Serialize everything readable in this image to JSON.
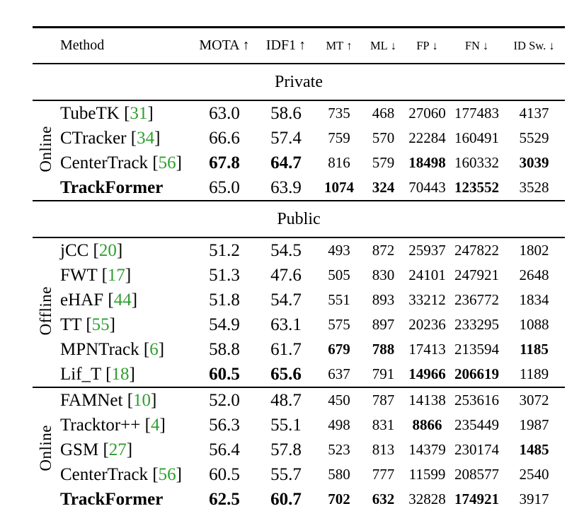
{
  "colors": {
    "citation": "#2e9e2e",
    "text": "#000000",
    "rule": "#000000"
  },
  "header": {
    "method_label": "Method",
    "metrics": [
      {
        "key": "mota",
        "label": "MOTA",
        "arrow": "↑",
        "size": "big"
      },
      {
        "key": "idf1",
        "label": "IDF1",
        "arrow": "↑",
        "size": "big"
      },
      {
        "key": "mt",
        "label": "MT",
        "arrow": "↑",
        "size": "small"
      },
      {
        "key": "ml",
        "label": "ML",
        "arrow": "↓",
        "size": "small"
      },
      {
        "key": "fp",
        "label": "FP",
        "arrow": "↓",
        "size": "small"
      },
      {
        "key": "fn",
        "label": "FN",
        "arrow": "↓",
        "size": "small"
      },
      {
        "key": "id-sw",
        "label": "ID Sw.",
        "arrow": "↓",
        "size": "small"
      }
    ]
  },
  "sections": [
    {
      "title": "Private",
      "groups": [
        {
          "label": "Online",
          "rows": [
            {
              "method": "TubeTK",
              "cite": "31",
              "bold_method": false,
              "values": [
                "63.0",
                "58.6",
                "735",
                "468",
                "27060",
                "177483",
                "4137"
              ],
              "bold": [
                0,
                0,
                0,
                0,
                0,
                0,
                0
              ]
            },
            {
              "method": "CTracker",
              "cite": "34",
              "bold_method": false,
              "values": [
                "66.6",
                "57.4",
                "759",
                "570",
                "22284",
                "160491",
                "5529"
              ],
              "bold": [
                0,
                0,
                0,
                0,
                0,
                0,
                0
              ]
            },
            {
              "method": "CenterTrack",
              "cite": "56",
              "bold_method": false,
              "values": [
                "67.8",
                "64.7",
                "816",
                "579",
                "18498",
                "160332",
                "3039"
              ],
              "bold": [
                1,
                1,
                0,
                0,
                1,
                0,
                1
              ]
            },
            {
              "method": "TrackFormer",
              "cite": null,
              "bold_method": true,
              "values": [
                "65.0",
                "63.9",
                "1074",
                "324",
                "70443",
                "123552",
                "3528"
              ],
              "bold": [
                0,
                0,
                1,
                1,
                0,
                1,
                0
              ]
            }
          ]
        }
      ]
    },
    {
      "title": "Public",
      "groups": [
        {
          "label": "Offline",
          "rows": [
            {
              "method": "jCC",
              "cite": "20",
              "bold_method": false,
              "values": [
                "51.2",
                "54.5",
                "493",
                "872",
                "25937",
                "247822",
                "1802"
              ],
              "bold": [
                0,
                0,
                0,
                0,
                0,
                0,
                0
              ]
            },
            {
              "method": "FWT",
              "cite": "17",
              "bold_method": false,
              "values": [
                "51.3",
                "47.6",
                "505",
                "830",
                "24101",
                "247921",
                "2648"
              ],
              "bold": [
                0,
                0,
                0,
                0,
                0,
                0,
                0
              ]
            },
            {
              "method": "eHAF",
              "cite": "44",
              "bold_method": false,
              "values": [
                "51.8",
                "54.7",
                "551",
                "893",
                "33212",
                "236772",
                "1834"
              ],
              "bold": [
                0,
                0,
                0,
                0,
                0,
                0,
                0
              ]
            },
            {
              "method": "TT",
              "cite": "55",
              "bold_method": false,
              "values": [
                "54.9",
                "63.1",
                "575",
                "897",
                "20236",
                "233295",
                "1088"
              ],
              "bold": [
                0,
                0,
                0,
                0,
                0,
                0,
                0
              ]
            },
            {
              "method": "MPNTrack",
              "cite": "6",
              "bold_method": false,
              "values": [
                "58.8",
                "61.7",
                "679",
                "788",
                "17413",
                "213594",
                "1185"
              ],
              "bold": [
                0,
                0,
                1,
                1,
                0,
                0,
                1
              ]
            },
            {
              "method": "Lif_T",
              "cite": "18",
              "bold_method": false,
              "values": [
                "60.5",
                "65.6",
                "637",
                "791",
                "14966",
                "206619",
                "1189"
              ],
              "bold": [
                1,
                1,
                0,
                0,
                1,
                1,
                0
              ]
            }
          ]
        },
        {
          "label": "Online",
          "rows": [
            {
              "method": "FAMNet",
              "cite": "10",
              "bold_method": false,
              "values": [
                "52.0",
                "48.7",
                "450",
                "787",
                "14138",
                "253616",
                "3072"
              ],
              "bold": [
                0,
                0,
                0,
                0,
                0,
                0,
                0
              ]
            },
            {
              "method": "Tracktor++",
              "cite": "4",
              "bold_method": false,
              "values": [
                "56.3",
                "55.1",
                "498",
                "831",
                "8866",
                "235449",
                "1987"
              ],
              "bold": [
                0,
                0,
                0,
                0,
                1,
                0,
                0
              ]
            },
            {
              "method": "GSM",
              "cite": "27",
              "bold_method": false,
              "values": [
                "56.4",
                "57.8",
                "523",
                "813",
                "14379",
                "230174",
                "1485"
              ],
              "bold": [
                0,
                0,
                0,
                0,
                0,
                0,
                1
              ]
            },
            {
              "method": "CenterTrack",
              "cite": "56",
              "bold_method": false,
              "values": [
                "60.5",
                "55.7",
                "580",
                "777",
                "11599",
                "208577",
                "2540"
              ],
              "bold": [
                0,
                0,
                0,
                0,
                0,
                0,
                0
              ]
            },
            {
              "method": "TrackFormer",
              "cite": null,
              "bold_method": true,
              "values": [
                "62.5",
                "60.7",
                "702",
                "632",
                "32828",
                "174921",
                "3917"
              ],
              "bold": [
                1,
                1,
                1,
                1,
                0,
                1,
                0
              ]
            }
          ]
        }
      ]
    }
  ]
}
